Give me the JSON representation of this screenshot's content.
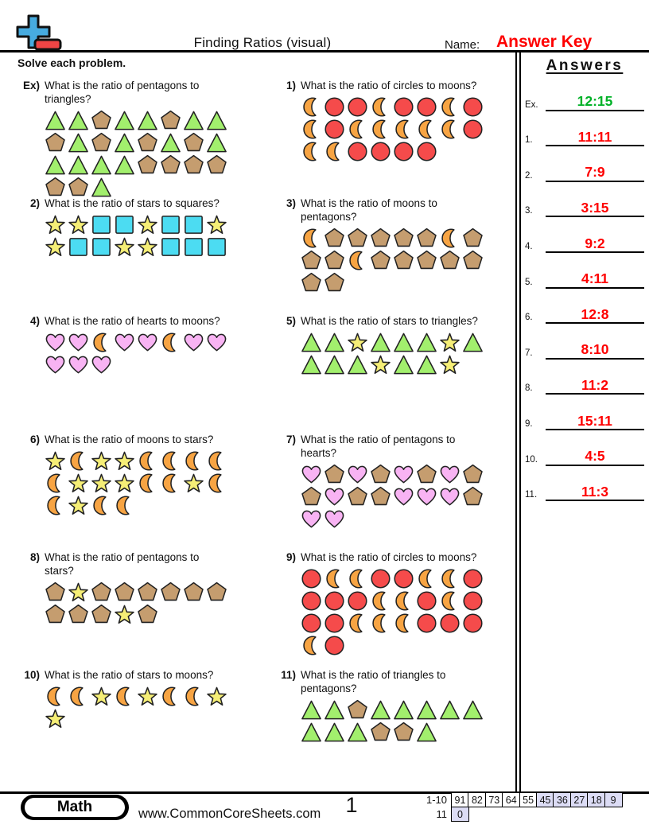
{
  "page": {
    "title": "Finding Ratios (visual)",
    "name_label": "Name:",
    "name_value": "Answer Key",
    "instructions": "Solve each problem.",
    "page_number": "1"
  },
  "colors": {
    "answer_green": "#00b127",
    "answer_red": "#fe0000",
    "name_value_red": "#fe0000",
    "shaded_cell": "#dcdcf5"
  },
  "shape_fills": {
    "triangle": "#a2ef6d",
    "pentagon": "#c59d6f",
    "circle": "#f54b4b",
    "square": "#4cdcf2",
    "star": "#f5ee76",
    "moon": "#f7a443",
    "heart": "#f8b3f3"
  },
  "problems": [
    {
      "id": "ex",
      "number": "Ex)",
      "question": [
        "What is the ratio of pentagons to",
        "triangles?"
      ],
      "grid": [
        [
          "triangle",
          "triangle",
          "pentagon",
          "triangle",
          "triangle",
          "pentagon",
          "triangle",
          "triangle"
        ],
        [
          "pentagon",
          "triangle",
          "pentagon",
          "triangle",
          "pentagon",
          "triangle",
          "pentagon",
          "triangle"
        ],
        [
          "triangle",
          "triangle",
          "triangle",
          "triangle",
          "pentagon",
          "pentagon",
          "pentagon",
          "pentagon"
        ],
        [
          "pentagon",
          "pentagon",
          "triangle"
        ]
      ]
    },
    {
      "id": "1",
      "number": "1)",
      "question": [
        "What is the ratio of circles to moons?"
      ],
      "grid": [
        [
          "moon",
          "circle",
          "circle",
          "moon",
          "circle",
          "circle",
          "moon",
          "circle"
        ],
        [
          "moon",
          "circle",
          "moon",
          "moon",
          "moon",
          "moon",
          "moon",
          "circle"
        ],
        [
          "moon",
          "moon",
          "circle",
          "circle",
          "circle",
          "circle"
        ]
      ]
    },
    {
      "id": "2",
      "number": "2)",
      "question": [
        "What is the ratio of stars to squares?"
      ],
      "grid": [
        [
          "star",
          "star",
          "square",
          "square",
          "star",
          "square",
          "square",
          "star"
        ],
        [
          "star",
          "square",
          "square",
          "star",
          "star",
          "square",
          "square",
          "square"
        ]
      ]
    },
    {
      "id": "3",
      "number": "3)",
      "question": [
        "What is the ratio of moons to",
        "pentagons?"
      ],
      "grid": [
        [
          "moon",
          "pentagon",
          "pentagon",
          "pentagon",
          "pentagon",
          "pentagon",
          "moon",
          "pentagon"
        ],
        [
          "pentagon",
          "pentagon",
          "moon",
          "pentagon",
          "pentagon",
          "pentagon",
          "pentagon",
          "pentagon"
        ],
        [
          "pentagon",
          "pentagon"
        ]
      ]
    },
    {
      "id": "4",
      "number": "4)",
      "question": [
        "What is the ratio of hearts to moons?"
      ],
      "grid": [
        [
          "heart",
          "heart",
          "moon",
          "heart",
          "heart",
          "moon",
          "heart",
          "heart"
        ],
        [
          "heart",
          "heart",
          "heart"
        ]
      ]
    },
    {
      "id": "5",
      "number": "5)",
      "question": [
        "What is the ratio of stars to triangles?"
      ],
      "grid": [
        [
          "triangle",
          "triangle",
          "star",
          "triangle",
          "triangle",
          "triangle",
          "star",
          "triangle"
        ],
        [
          "triangle",
          "triangle",
          "triangle",
          "star",
          "triangle",
          "triangle",
          "star"
        ]
      ]
    },
    {
      "id": "6",
      "number": "6)",
      "question": [
        "What is the ratio of moons to stars?"
      ],
      "grid": [
        [
          "star",
          "moon",
          "star",
          "star",
          "moon",
          "moon",
          "moon",
          "moon"
        ],
        [
          "moon",
          "star",
          "star",
          "star",
          "moon",
          "moon",
          "star",
          "moon"
        ],
        [
          "moon",
          "star",
          "moon",
          "moon"
        ]
      ]
    },
    {
      "id": "7",
      "number": "7)",
      "question": [
        "What is the ratio of pentagons to",
        "hearts?"
      ],
      "grid": [
        [
          "heart",
          "pentagon",
          "heart",
          "pentagon",
          "heart",
          "pentagon",
          "heart",
          "pentagon"
        ],
        [
          "pentagon",
          "heart",
          "pentagon",
          "pentagon",
          "heart",
          "heart",
          "heart",
          "pentagon"
        ],
        [
          "heart",
          "heart"
        ]
      ]
    },
    {
      "id": "8",
      "number": "8)",
      "question": [
        "What is the ratio of pentagons to",
        "stars?"
      ],
      "grid": [
        [
          "pentagon",
          "star",
          "pentagon",
          "pentagon",
          "pentagon",
          "pentagon",
          "pentagon",
          "pentagon"
        ],
        [
          "pentagon",
          "pentagon",
          "pentagon",
          "star",
          "pentagon"
        ]
      ]
    },
    {
      "id": "9",
      "number": "9)",
      "question": [
        "What is the ratio of circles to moons?"
      ],
      "grid": [
        [
          "circle",
          "moon",
          "moon",
          "circle",
          "circle",
          "moon",
          "moon",
          "circle"
        ],
        [
          "circle",
          "circle",
          "circle",
          "moon",
          "moon",
          "circle",
          "moon",
          "circle"
        ],
        [
          "circle",
          "circle",
          "moon",
          "moon",
          "moon",
          "circle",
          "circle",
          "circle"
        ],
        [
          "moon",
          "circle"
        ]
      ]
    },
    {
      "id": "10",
      "number": "10)",
      "question": [
        "What is the ratio of stars to moons?"
      ],
      "grid": [
        [
          "moon",
          "moon",
          "star",
          "moon",
          "star",
          "moon",
          "moon",
          "star"
        ],
        [
          "star"
        ]
      ]
    },
    {
      "id": "11",
      "number": "11)",
      "question": [
        "What is the ratio of triangles to",
        "pentagons?"
      ],
      "grid": [
        [
          "triangle",
          "triangle",
          "pentagon",
          "triangle",
          "triangle",
          "triangle",
          "triangle",
          "triangle"
        ],
        [
          "triangle",
          "triangle",
          "triangle",
          "pentagon",
          "pentagon",
          "triangle"
        ]
      ]
    }
  ],
  "answers": {
    "title": "Answers",
    "items": [
      {
        "label": "Ex.",
        "value": "12:15",
        "color": "answer_green"
      },
      {
        "label": "1.",
        "value": "11:11",
        "color": "answer_red"
      },
      {
        "label": "2.",
        "value": "7:9",
        "color": "answer_red"
      },
      {
        "label": "3.",
        "value": "3:15",
        "color": "answer_red"
      },
      {
        "label": "4.",
        "value": "9:2",
        "color": "answer_red"
      },
      {
        "label": "5.",
        "value": "4:11",
        "color": "answer_red"
      },
      {
        "label": "6.",
        "value": "12:8",
        "color": "answer_red"
      },
      {
        "label": "7.",
        "value": "8:10",
        "color": "answer_red"
      },
      {
        "label": "8.",
        "value": "11:2",
        "color": "answer_red"
      },
      {
        "label": "9.",
        "value": "15:11",
        "color": "answer_red"
      },
      {
        "label": "10.",
        "value": "4:5",
        "color": "answer_red"
      },
      {
        "label": "11.",
        "value": "11:3",
        "color": "answer_red"
      }
    ]
  },
  "footer": {
    "subject": "Math",
    "website": "www.CommonCoreSheets.com",
    "score_rows": [
      {
        "label": "1-10",
        "cells": [
          {
            "value": "91",
            "shaded": false
          },
          {
            "value": "82",
            "shaded": false
          },
          {
            "value": "73",
            "shaded": false
          },
          {
            "value": "64",
            "shaded": false
          },
          {
            "value": "55",
            "shaded": false
          },
          {
            "value": "45",
            "shaded": true
          },
          {
            "value": "36",
            "shaded": true
          },
          {
            "value": "27",
            "shaded": true
          },
          {
            "value": "18",
            "shaded": true
          },
          {
            "value": "9",
            "shaded": true
          }
        ]
      },
      {
        "label": "11",
        "cells": [
          {
            "value": "0",
            "shaded": true
          }
        ]
      }
    ]
  }
}
